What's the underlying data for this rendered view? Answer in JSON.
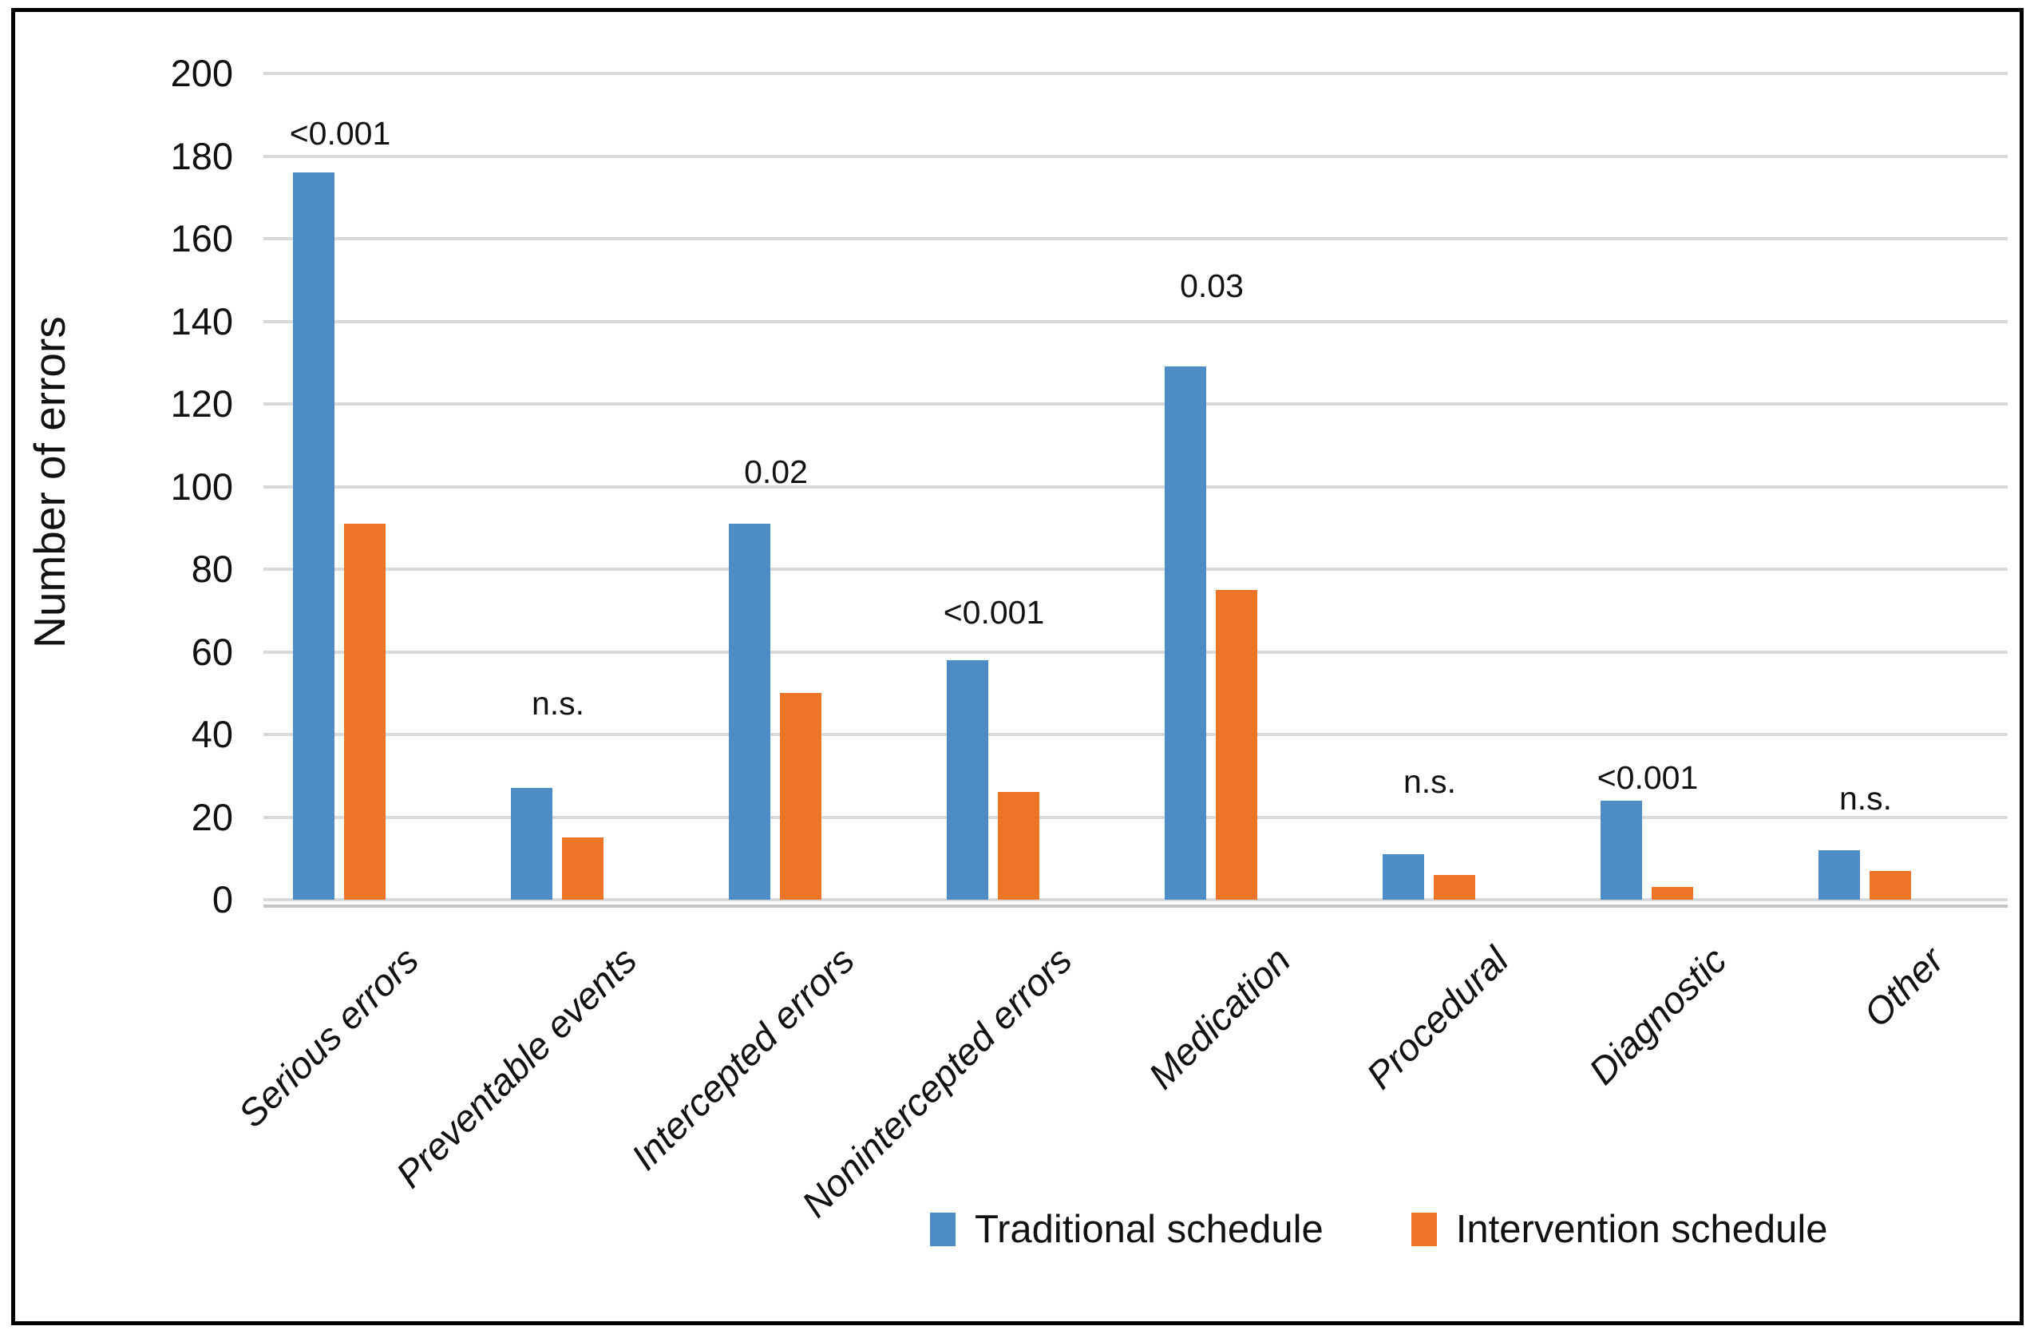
{
  "chart_data": {
    "type": "bar",
    "grouped": true,
    "title": "",
    "ylabel": "Number of errors",
    "xlabel": "",
    "ylim": [
      0,
      200
    ],
    "ytick_step": 20,
    "ytick_labels": [
      "0",
      "20",
      "40",
      "60",
      "80",
      "100",
      "120",
      "140",
      "160",
      "180",
      "200"
    ],
    "grid": "horizontal",
    "legend_position": "bottom-right",
    "categories": [
      "Serious errors",
      "Preventable events",
      "Intercepted errors",
      "Nonintercepted errors",
      "Medication",
      "Procedural",
      "Diagnostic",
      "Other"
    ],
    "series": [
      {
        "name": "Traditional schedule",
        "color": "#4e8cc8",
        "values": [
          176,
          27,
          91,
          58,
          129,
          11,
          24,
          12
        ]
      },
      {
        "name": "Intervention schedule",
        "color": "#ee7428",
        "values": [
          91,
          15,
          50,
          26,
          75,
          6,
          3,
          7
        ]
      }
    ],
    "p_value_annotations": [
      "<0.001",
      "n.s.",
      "0.02",
      "<0.001",
      "0.03",
      "n.s.",
      "<0.001",
      "n.s."
    ],
    "p_label_center_y_units": [
      185,
      47,
      103,
      69,
      148,
      28,
      29,
      24
    ],
    "colors": {
      "traditional_blue": "#4e8cc8",
      "intervention_orange": "#ee7428",
      "gridline_gray": "#d7dadc",
      "text_black": "#111111",
      "frame_black": "#000000"
    }
  },
  "legend": {
    "traditional_label": "Traditional schedule",
    "intervention_label": "Intervention schedule"
  },
  "y_axis": {
    "title": "Number of errors"
  }
}
